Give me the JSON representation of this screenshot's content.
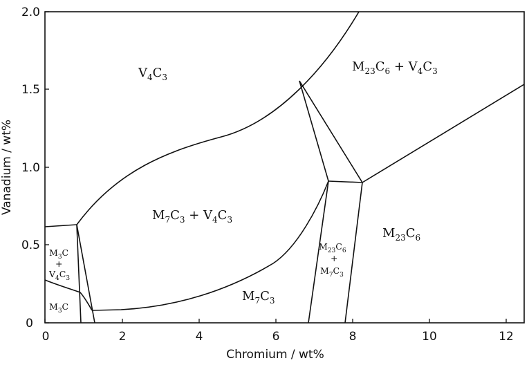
{
  "x_axis": {
    "label": "Chromium / wt%",
    "ticks": [
      "0",
      "2",
      "4",
      "6",
      "8",
      "10",
      "12"
    ]
  },
  "y_axis": {
    "label": "Vanadium / wt%",
    "ticks": [
      "0",
      "0.5",
      "1.0",
      "1.5",
      "2.0"
    ]
  },
  "regions": {
    "v4c3": {
      "base": [
        "V",
        "C"
      ],
      "sub": [
        "4",
        "3"
      ]
    },
    "m23c6_v4c3": {
      "base": [
        "M",
        "C",
        " + V",
        "C"
      ],
      "sub": [
        "23",
        "6",
        "4",
        "3"
      ]
    },
    "m7c3_v4c3": {
      "base": [
        "M",
        "C",
        " + V",
        "C"
      ],
      "sub": [
        "7",
        "3",
        "4",
        "3"
      ]
    },
    "m23c6": {
      "base": [
        "M",
        "C"
      ],
      "sub": [
        "23",
        "6"
      ]
    },
    "m7c3": {
      "base": [
        "M",
        "C"
      ],
      "sub": [
        "7",
        "3"
      ]
    },
    "m3c_v4c3": {
      "line1": {
        "base": [
          "M",
          "C"
        ],
        "sub": [
          "3",
          ""
        ]
      },
      "plus": "+",
      "line2": {
        "base": [
          "V",
          "C"
        ],
        "sub": [
          "4",
          "3"
        ]
      }
    },
    "m3c": {
      "base": [
        "M",
        "C"
      ],
      "sub": [
        "3",
        ""
      ]
    },
    "m23c6_m7c3": {
      "line1": {
        "base": [
          "M",
          "C"
        ],
        "sub": [
          "23",
          "6"
        ]
      },
      "plus": "+",
      "line2": {
        "base": [
          "M",
          "C"
        ],
        "sub": [
          "7",
          "3"
        ]
      }
    }
  }
}
